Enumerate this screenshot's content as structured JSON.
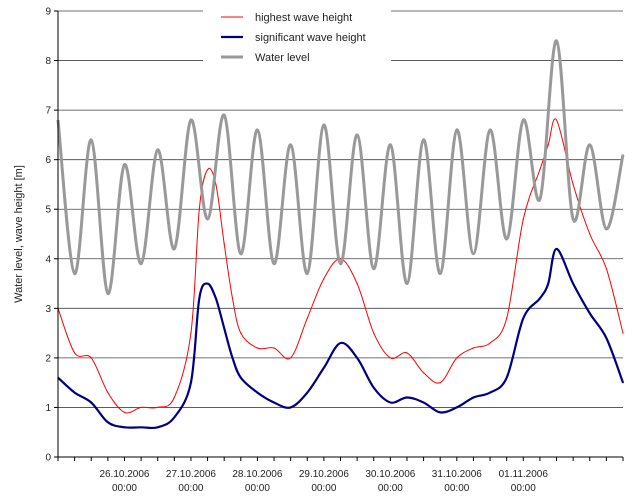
{
  "chart_data": {
    "type": "line",
    "title": "",
    "ylabel": "Water level, wave height [m]",
    "xlabel": "",
    "ylim": [
      0,
      9
    ],
    "y_ticks": [
      "0",
      "1",
      "2",
      "3",
      "4",
      "5",
      "6",
      "7",
      "8",
      "9"
    ],
    "xlim": [
      "2006-10-25 00:00",
      "2006-11-02 12:00"
    ],
    "x_ticks": [
      {
        "date": "26.10.2006",
        "time": "00:00",
        "x": "2006-10-26 00:00"
      },
      {
        "date": "27.10.2006",
        "time": "00:00",
        "x": "2006-10-27 00:00"
      },
      {
        "date": "28.10.2006",
        "time": "00:00",
        "x": "2006-10-28 00:00"
      },
      {
        "date": "29.10.2006",
        "time": "00:00",
        "x": "2006-10-29 00:00"
      },
      {
        "date": "30.10.2006",
        "time": "00:00",
        "x": "2006-10-30 00:00"
      },
      {
        "date": "31.10.2006",
        "time": "00:00",
        "x": "2006-10-31 00:00"
      },
      {
        "date": "01.11.2006",
        "time": "00:00",
        "x": "2006-11-01 00:00"
      }
    ],
    "grid": "horizontal",
    "legend_position": "top-center",
    "series": [
      {
        "name": "highest wave height",
        "color": "#ff0000",
        "x": [
          "2006-10-25 00:00",
          "2006-10-25 06:00",
          "2006-10-25 12:00",
          "2006-10-25 18:00",
          "2006-10-26 00:00",
          "2006-10-26 06:00",
          "2006-10-26 12:00",
          "2006-10-26 18:00",
          "2006-10-27 00:00",
          "2006-10-27 03:00",
          "2006-10-27 06:00",
          "2006-10-27 09:00",
          "2006-10-27 12:00",
          "2006-10-27 15:00",
          "2006-10-27 18:00",
          "2006-10-28 00:00",
          "2006-10-28 06:00",
          "2006-10-28 12:00",
          "2006-10-28 18:00",
          "2006-10-29 00:00",
          "2006-10-29 06:00",
          "2006-10-29 12:00",
          "2006-10-29 18:00",
          "2006-10-30 00:00",
          "2006-10-30 06:00",
          "2006-10-30 12:00",
          "2006-10-30 18:00",
          "2006-10-31 00:00",
          "2006-10-31 06:00",
          "2006-10-31 12:00",
          "2006-10-31 18:00",
          "2006-11-01 00:00",
          "2006-11-01 06:00",
          "2006-11-01 09:00",
          "2006-11-01 12:00",
          "2006-11-01 18:00",
          "2006-11-02 00:00",
          "2006-11-02 06:00",
          "2006-11-02 12:00"
        ],
        "y": [
          3.0,
          2.1,
          2.0,
          1.3,
          0.9,
          1.0,
          1.0,
          1.2,
          2.5,
          5.0,
          5.8,
          5.5,
          4.3,
          3.2,
          2.5,
          2.2,
          2.2,
          2.0,
          2.8,
          3.6,
          4.0,
          3.5,
          2.5,
          2.0,
          2.1,
          1.7,
          1.5,
          2.0,
          2.2,
          2.3,
          2.8,
          4.8,
          5.8,
          6.3,
          6.8,
          5.5,
          4.5,
          3.8,
          2.5
        ]
      },
      {
        "name": "significant wave height",
        "color": "#000080",
        "x": [
          "2006-10-25 00:00",
          "2006-10-25 06:00",
          "2006-10-25 12:00",
          "2006-10-25 18:00",
          "2006-10-26 00:00",
          "2006-10-26 06:00",
          "2006-10-26 12:00",
          "2006-10-26 18:00",
          "2006-10-27 00:00",
          "2006-10-27 03:00",
          "2006-10-27 06:00",
          "2006-10-27 09:00",
          "2006-10-27 12:00",
          "2006-10-27 15:00",
          "2006-10-27 18:00",
          "2006-10-28 00:00",
          "2006-10-28 06:00",
          "2006-10-28 12:00",
          "2006-10-28 18:00",
          "2006-10-29 00:00",
          "2006-10-29 06:00",
          "2006-10-29 12:00",
          "2006-10-29 18:00",
          "2006-10-30 00:00",
          "2006-10-30 06:00",
          "2006-10-30 12:00",
          "2006-10-30 18:00",
          "2006-10-31 00:00",
          "2006-10-31 06:00",
          "2006-10-31 12:00",
          "2006-10-31 18:00",
          "2006-11-01 00:00",
          "2006-11-01 06:00",
          "2006-11-01 09:00",
          "2006-11-01 12:00",
          "2006-11-01 18:00",
          "2006-11-02 00:00",
          "2006-11-02 06:00",
          "2006-11-02 12:00"
        ],
        "y": [
          1.6,
          1.3,
          1.1,
          0.7,
          0.6,
          0.6,
          0.6,
          0.8,
          1.5,
          3.2,
          3.5,
          3.2,
          2.6,
          2.0,
          1.6,
          1.3,
          1.1,
          1.0,
          1.3,
          1.8,
          2.3,
          2.0,
          1.4,
          1.1,
          1.2,
          1.1,
          0.9,
          1.0,
          1.2,
          1.3,
          1.6,
          2.8,
          3.2,
          3.5,
          4.2,
          3.5,
          2.9,
          2.4,
          1.5
        ]
      },
      {
        "name": "Water level",
        "color": "#999999",
        "x": [
          "2006-10-25 00:00",
          "2006-10-25 06:00",
          "2006-10-25 12:00",
          "2006-10-25 18:00",
          "2006-10-26 00:00",
          "2006-10-26 06:00",
          "2006-10-26 12:00",
          "2006-10-26 18:00",
          "2006-10-27 00:00",
          "2006-10-27 06:00",
          "2006-10-27 12:00",
          "2006-10-27 18:00",
          "2006-10-28 00:00",
          "2006-10-28 06:00",
          "2006-10-28 12:00",
          "2006-10-28 18:00",
          "2006-10-29 00:00",
          "2006-10-29 06:00",
          "2006-10-29 12:00",
          "2006-10-29 18:00",
          "2006-10-30 00:00",
          "2006-10-30 06:00",
          "2006-10-30 12:00",
          "2006-10-30 18:00",
          "2006-10-31 00:00",
          "2006-10-31 06:00",
          "2006-10-31 12:00",
          "2006-10-31 18:00",
          "2006-11-01 00:00",
          "2006-11-01 06:00",
          "2006-11-01 12:00",
          "2006-11-01 18:00",
          "2006-11-02 00:00",
          "2006-11-02 06:00",
          "2006-11-02 12:00"
        ],
        "y": [
          6.8,
          3.7,
          6.4,
          3.3,
          5.9,
          3.9,
          6.2,
          4.2,
          6.8,
          4.8,
          6.9,
          4.1,
          6.6,
          3.9,
          6.3,
          3.7,
          6.7,
          3.9,
          6.5,
          3.8,
          6.3,
          3.5,
          6.4,
          3.7,
          6.6,
          4.1,
          6.6,
          4.4,
          6.8,
          5.2,
          8.4,
          4.8,
          6.3,
          4.6,
          6.1
        ]
      }
    ]
  }
}
